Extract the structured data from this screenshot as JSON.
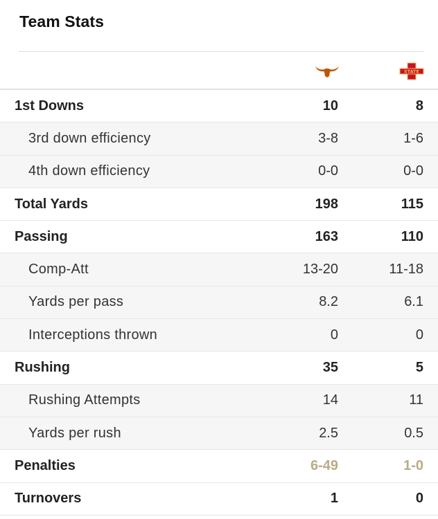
{
  "header": {
    "title": "Team Stats"
  },
  "teams": [
    {
      "name": "Texas",
      "logo": "longhorn-logo",
      "color": "#bf5700"
    },
    {
      "name": "Iowa State",
      "logo": "iowa-state-logo",
      "color": "#c8102e"
    }
  ],
  "highlight_color": "#f6e9a8",
  "rows": [
    {
      "label": "1st Downs",
      "level": "main",
      "values": [
        "10",
        "8"
      ]
    },
    {
      "label": "3rd down efficiency",
      "level": "sub",
      "values": [
        "3-8",
        "1-6"
      ]
    },
    {
      "label": "4th down efficiency",
      "level": "sub",
      "values": [
        "0-0",
        "0-0"
      ]
    },
    {
      "label": "Total Yards",
      "level": "main",
      "values": [
        "198",
        "115"
      ]
    },
    {
      "label": "Passing",
      "level": "main",
      "values": [
        "163",
        "110"
      ]
    },
    {
      "label": "Comp-Att",
      "level": "sub",
      "values": [
        "13-20",
        "11-18"
      ]
    },
    {
      "label": "Yards per pass",
      "level": "sub",
      "values": [
        "8.2",
        "6.1"
      ]
    },
    {
      "label": "Interceptions thrown",
      "level": "sub",
      "values": [
        "0",
        "0"
      ]
    },
    {
      "label": "Rushing",
      "level": "main",
      "values": [
        "35",
        "5"
      ]
    },
    {
      "label": "Rushing Attempts",
      "level": "sub",
      "values": [
        "14",
        "11"
      ]
    },
    {
      "label": "Yards per rush",
      "level": "sub",
      "values": [
        "2.5",
        "0.5"
      ]
    },
    {
      "label": "Penalties",
      "level": "main",
      "values": [
        "6-49",
        "1-0"
      ]
    },
    {
      "label": "Turnovers",
      "level": "main",
      "values": [
        "1",
        "0"
      ]
    }
  ]
}
